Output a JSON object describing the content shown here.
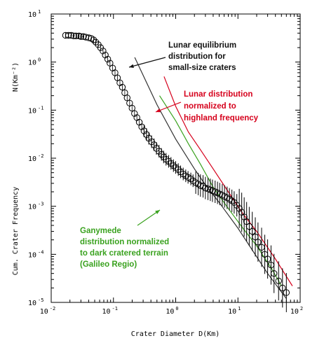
{
  "chart_data": {
    "type": "scatter",
    "xscale": "log",
    "yscale": "log",
    "xlim": [
      0.01,
      100
    ],
    "ylim": [
      1e-05,
      10
    ],
    "xlabel": "Crater Diameter D(Km)",
    "ylabel": "Cum. Crater Frequency",
    "ylabel_units": "N(Km⁻²)",
    "x_ticks": [
      {
        "base": "10",
        "exp": "-2",
        "value": 0.01
      },
      {
        "base": "10",
        "exp": "-1",
        "value": 0.1
      },
      {
        "base": "10",
        "exp": "0",
        "value": 1
      },
      {
        "base": "10",
        "exp": "1",
        "value": 10
      },
      {
        "base": "10",
        "exp": "2",
        "value": 100
      }
    ],
    "y_ticks": [
      {
        "base": "10",
        "exp": "1",
        "value": 10
      },
      {
        "base": "10",
        "exp": "0",
        "value": 1
      },
      {
        "base": "10",
        "exp": "-1",
        "value": 0.1
      },
      {
        "base": "10",
        "exp": "-2",
        "value": 0.01
      },
      {
        "base": "10",
        "exp": "-3",
        "value": 0.001
      },
      {
        "base": "10",
        "exp": "-4",
        "value": 0.0001
      },
      {
        "base": "10",
        "exp": "-5",
        "value": 1e-05
      }
    ],
    "series": [
      {
        "kind": "points",
        "color": "#000000",
        "points": [
          [
            0.017,
            3.6
          ],
          [
            0.019,
            3.6
          ],
          [
            0.021,
            3.6
          ],
          [
            0.023,
            3.5
          ],
          [
            0.025,
            3.5
          ],
          [
            0.028,
            3.5
          ],
          [
            0.03,
            3.4
          ],
          [
            0.033,
            3.4
          ],
          [
            0.036,
            3.3
          ],
          [
            0.04,
            3.2
          ],
          [
            0.044,
            3.1
          ],
          [
            0.048,
            2.9
          ],
          [
            0.052,
            2.6
          ],
          [
            0.057,
            2.3
          ],
          [
            0.062,
            2.0
          ],
          [
            0.068,
            1.7
          ],
          [
            0.074,
            1.4
          ],
          [
            0.081,
            1.15
          ],
          [
            0.088,
            0.95
          ],
          [
            0.097,
            0.75
          ],
          [
            0.106,
            0.6
          ],
          [
            0.116,
            0.47
          ],
          [
            0.127,
            0.37
          ],
          [
            0.139,
            0.3
          ],
          [
            0.152,
            0.23
          ],
          [
            0.166,
            0.18
          ],
          [
            0.182,
            0.14
          ],
          [
            0.199,
            0.11
          ],
          [
            0.218,
            0.085
          ],
          [
            0.238,
            0.07
          ],
          [
            0.26,
            0.056
          ],
          [
            0.285,
            0.045
          ],
          [
            0.31,
            0.037
          ],
          [
            0.34,
            0.031
          ],
          [
            0.37,
            0.026
          ],
          [
            0.41,
            0.022
          ],
          [
            0.45,
            0.019
          ],
          [
            0.49,
            0.016
          ],
          [
            0.54,
            0.014
          ],
          [
            0.59,
            0.012
          ],
          [
            0.64,
            0.0106
          ],
          [
            0.7,
            0.0095
          ],
          [
            0.77,
            0.0086
          ],
          [
            0.84,
            0.0078
          ],
          [
            0.92,
            0.007
          ],
          [
            1.0,
            0.0064
          ],
          [
            1.1,
            0.0058
          ],
          [
            1.2,
            0.0052
          ],
          [
            1.32,
            0.0047
          ],
          [
            1.45,
            0.0043
          ],
          [
            1.58,
            0.004
          ],
          [
            1.75,
            0.0037
          ],
          [
            1.9,
            0.0034
          ],
          [
            2.1,
            0.0031
          ],
          [
            2.3,
            0.0029
          ],
          [
            2.5,
            0.0027
          ],
          [
            2.75,
            0.0026
          ],
          [
            3.0,
            0.0024
          ],
          [
            3.3,
            0.0023
          ],
          [
            3.6,
            0.0022
          ],
          [
            3.9,
            0.0021
          ],
          [
            4.3,
            0.002
          ],
          [
            4.7,
            0.0019
          ],
          [
            5.1,
            0.0018
          ],
          [
            5.6,
            0.0017
          ],
          [
            6.1,
            0.0016
          ],
          [
            6.7,
            0.0015
          ],
          [
            7.3,
            0.0014
          ],
          [
            8.0,
            0.0013
          ],
          [
            8.7,
            0.0012
          ],
          [
            9.6,
            0.00105
          ],
          [
            10.5,
            0.0009
          ],
          [
            11.5,
            0.00075
          ],
          [
            12.6,
            0.0006
          ],
          [
            13.8,
            0.00048
          ],
          [
            15.2,
            0.00038
          ],
          [
            17,
            0.0003
          ],
          [
            19,
            0.00023
          ],
          [
            21,
            0.00018
          ],
          [
            24,
            0.00014
          ],
          [
            27,
            0.0001
          ],
          [
            30,
            8e-05
          ],
          [
            34,
            6e-05
          ],
          [
            38,
            4e-05
          ],
          [
            45,
            2.8e-05
          ],
          [
            52,
            2e-05
          ],
          [
            60,
            1.6e-05
          ]
        ]
      },
      {
        "kind": "line",
        "color": "#333333",
        "points": [
          [
            0.22,
            1.25
          ],
          [
            0.5,
            0.13
          ],
          [
            1,
            0.025
          ],
          [
            2,
            0.006
          ],
          [
            3,
            0.0028
          ],
          [
            5,
            0.0012
          ],
          [
            10,
            0.00035
          ],
          [
            30,
            4e-05
          ],
          [
            60,
            1.2e-05
          ]
        ]
      },
      {
        "kind": "line",
        "color": "#d6001c",
        "points": [
          [
            0.65,
            0.5
          ],
          [
            1,
            0.12
          ],
          [
            1.6,
            0.035
          ],
          [
            2.5,
            0.015
          ],
          [
            4,
            0.006
          ],
          [
            7,
            0.002
          ],
          [
            12,
            0.0007
          ],
          [
            20,
            0.0003
          ],
          [
            40,
            8e-05
          ],
          [
            75,
            2.2e-05
          ]
        ]
      },
      {
        "kind": "line",
        "color": "#3aa21f",
        "points": [
          [
            0.55,
            0.2
          ],
          [
            1,
            0.06
          ],
          [
            1.6,
            0.02
          ],
          [
            2.5,
            0.0075
          ],
          [
            4,
            0.0025
          ],
          [
            7,
            0.0009
          ],
          [
            12,
            0.00035
          ],
          [
            20,
            0.00015
          ],
          [
            35,
            5e-05
          ],
          [
            50,
            2.2e-05
          ]
        ]
      }
    ],
    "annotations": [
      {
        "lines": [
          "Lunar equilibrium",
          "distribution for",
          "small-size craters"
        ],
        "color": "#111111"
      },
      {
        "lines": [
          "Lunar distribution",
          "normalized to",
          "highland frequency"
        ],
        "color": "#d6001c"
      },
      {
        "lines": [
          "Ganymede",
          "distribution normalized",
          "to dark cratered terrain",
          "(Galileo Regio)"
        ],
        "color": "#3aa21f"
      }
    ]
  }
}
